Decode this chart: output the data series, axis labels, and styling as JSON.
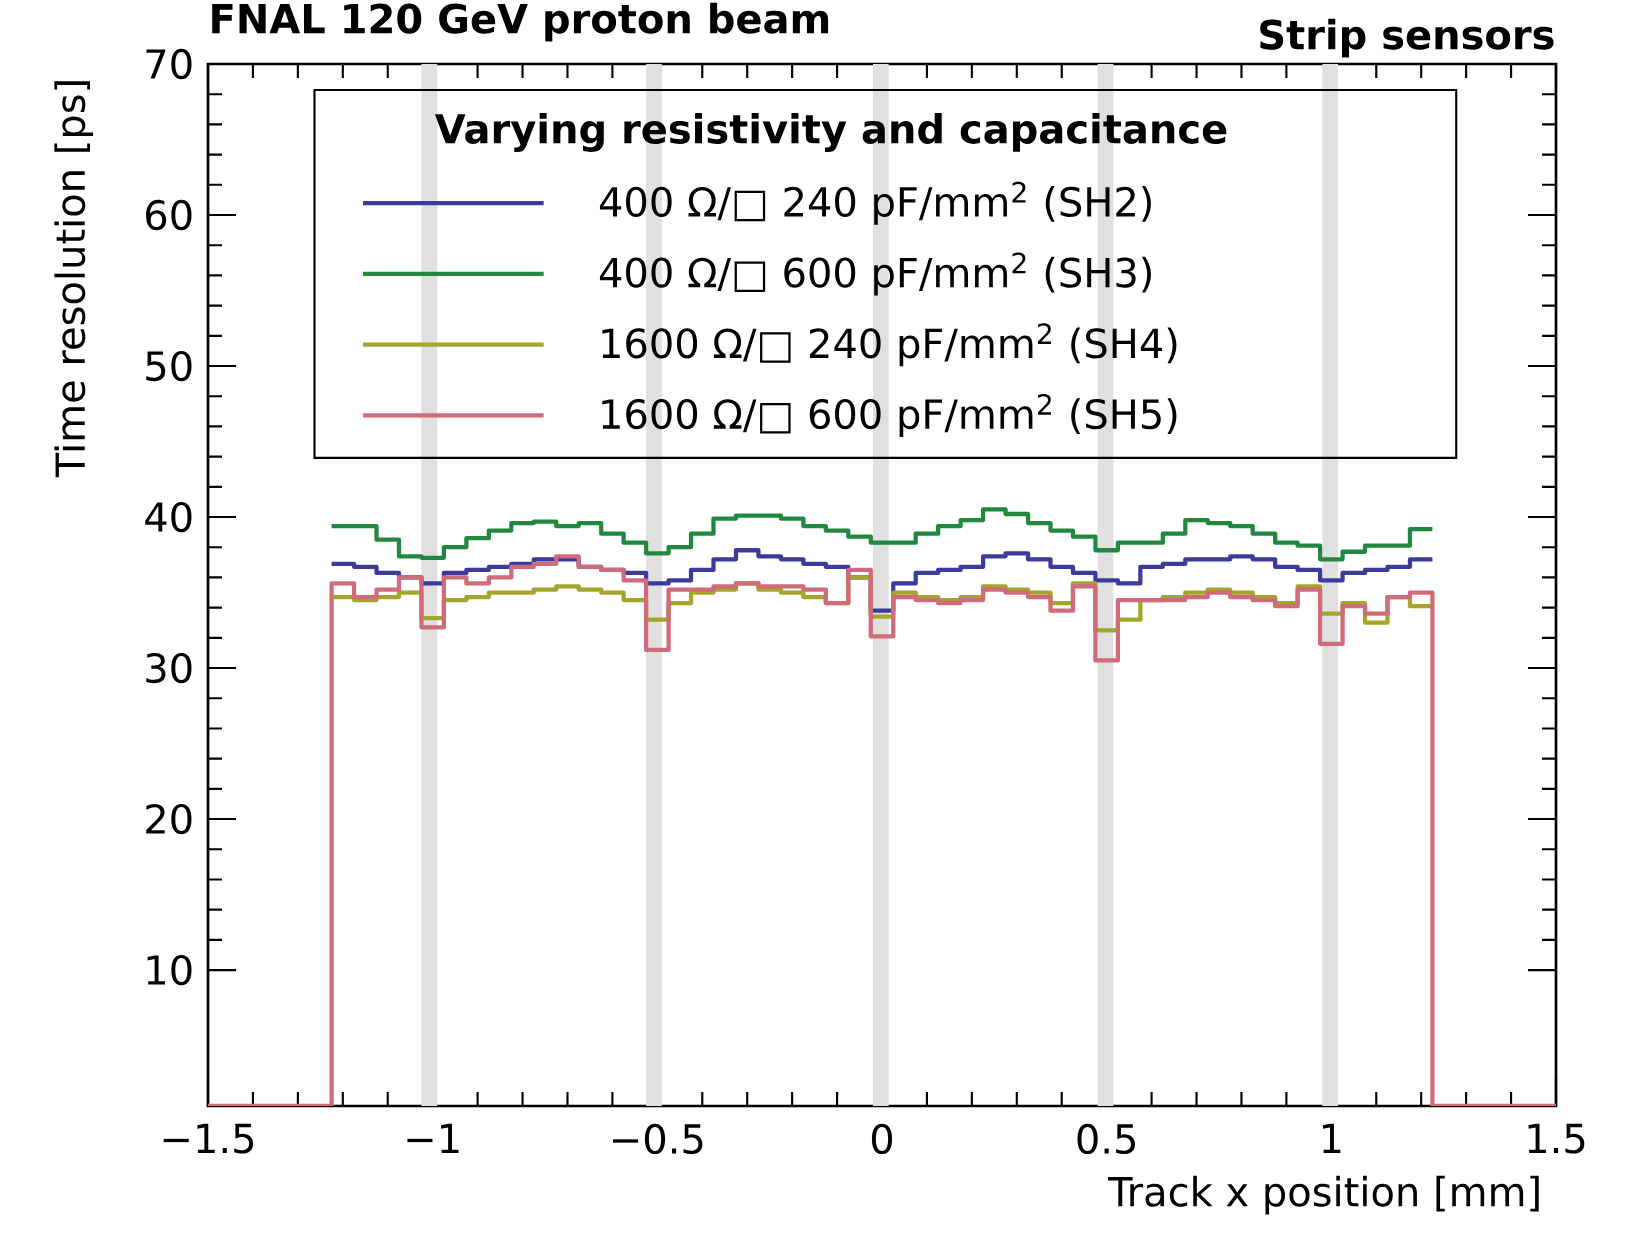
{
  "chart_data": {
    "type": "histogram",
    "title": "FNAL 120 GeV proton beam",
    "subtitle": "Strip sensors",
    "xlabel": "Track x position [mm]",
    "ylabel": "Time resolution [ps]",
    "legend_title": "Varying resistivity and capacitance",
    "legend": "top",
    "xlim": [
      -1.5,
      1.5
    ],
    "ylim": [
      1,
      70
    ],
    "xticks": [
      {
        "value": -1.5,
        "label": "−1.5"
      },
      {
        "value": -1,
        "label": "−1"
      },
      {
        "value": -0.5,
        "label": "−0.5"
      },
      0,
      0.5,
      1,
      1.5
    ],
    "yticks": [
      10,
      20,
      30,
      40,
      50,
      60,
      70
    ],
    "bins": [
      -1.225,
      -1.175,
      -1.125,
      -1.075,
      -1.025,
      -0.975,
      -0.925,
      -0.875,
      -0.825,
      -0.775,
      -0.725,
      -0.675,
      -0.625,
      -0.575,
      -0.525,
      -0.475,
      -0.425,
      -0.375,
      -0.325,
      -0.275,
      -0.225,
      -0.175,
      -0.125,
      -0.075,
      -0.025,
      0.025,
      0.075,
      0.125,
      0.175,
      0.225,
      0.275,
      0.325,
      0.375,
      0.425,
      0.475,
      0.525,
      0.575,
      0.625,
      0.675,
      0.725,
      0.775,
      0.825,
      0.875,
      0.925,
      0.975,
      1.025,
      1.075,
      1.125,
      1.175,
      1.225
    ],
    "bands": [
      {
        "axis": "x",
        "from": -1.025,
        "to": -0.99,
        "color": "#e0e0e0"
      },
      {
        "axis": "x",
        "from": -0.525,
        "to": -0.49,
        "color": "#e0e0e0"
      },
      {
        "axis": "x",
        "from": -0.02,
        "to": 0.015,
        "color": "#e0e0e0"
      },
      {
        "axis": "x",
        "from": 0.48,
        "to": 0.515,
        "color": "#e0e0e0"
      },
      {
        "axis": "x",
        "from": 0.98,
        "to": 1.015,
        "color": "#e0e0e0"
      }
    ],
    "series": [
      {
        "name": "400 Ω/□ 240 pF/mm$^{2}$  (SH2)",
        "color": "#3b3b9c",
        "values": [
          36.9,
          36.7,
          36.3,
          36.0,
          35.6,
          36.3,
          36.5,
          36.7,
          36.9,
          37.2,
          37.2,
          36.7,
          36.5,
          36.3,
          35.6,
          35.8,
          36.5,
          37.2,
          37.8,
          37.4,
          37.2,
          36.9,
          36.7,
          36.0,
          33.8,
          35.6,
          36.3,
          36.5,
          36.7,
          37.4,
          37.6,
          37.2,
          36.7,
          36.3,
          35.8,
          35.6,
          36.7,
          36.9,
          37.2,
          37.2,
          37.4,
          37.2,
          36.7,
          36.5,
          35.8,
          36.3,
          36.5,
          36.7,
          37.2
        ]
      },
      {
        "name": "400 Ω/□ 600 pF/mm$^{2}$  (SH3)",
        "color": "#23883f",
        "values": [
          39.4,
          39.4,
          38.5,
          37.4,
          37.3,
          38.0,
          38.6,
          39.1,
          39.6,
          39.7,
          39.4,
          39.6,
          38.9,
          38.3,
          37.6,
          38.0,
          38.9,
          39.9,
          40.1,
          40.1,
          39.9,
          39.4,
          39.1,
          38.7,
          38.3,
          38.3,
          38.9,
          39.4,
          39.8,
          40.5,
          40.2,
          39.6,
          39.1,
          38.7,
          37.8,
          38.3,
          38.3,
          38.9,
          39.8,
          39.6,
          39.4,
          38.9,
          38.3,
          38.1,
          37.2,
          37.7,
          38.1,
          38.1,
          39.2
        ]
      },
      {
        "name": "1600 Ω/□ 240 pF/mm$^{2}$  (SH4)",
        "color": "#a5a52c",
        "values": [
          34.7,
          34.5,
          34.7,
          35.0,
          33.3,
          34.5,
          34.7,
          35.0,
          35.0,
          35.2,
          35.4,
          35.2,
          35.0,
          34.5,
          33.2,
          34.3,
          35.0,
          35.2,
          35.6,
          35.2,
          35.0,
          34.7,
          34.3,
          36.0,
          33.4,
          35.0,
          34.7,
          34.5,
          34.7,
          35.4,
          35.2,
          35.0,
          34.3,
          35.6,
          32.5,
          33.2,
          34.5,
          34.7,
          35.0,
          35.2,
          35.0,
          34.7,
          34.3,
          35.4,
          33.6,
          34.3,
          33.0,
          34.7,
          34.1
        ]
      },
      {
        "name": "1600 Ω/□ 600 pF/mm$^{2}$  (SH5)",
        "color": "#cf6b7b",
        "bins": [
          -1.5,
          -1.225,
          -1.175,
          -1.125,
          -1.075,
          -1.025,
          -0.975,
          -0.925,
          -0.875,
          -0.825,
          -0.775,
          -0.725,
          -0.675,
          -0.625,
          -0.575,
          -0.525,
          -0.475,
          -0.425,
          -0.375,
          -0.325,
          -0.275,
          -0.225,
          -0.175,
          -0.125,
          -0.075,
          -0.025,
          0.025,
          0.075,
          0.125,
          0.175,
          0.225,
          0.275,
          0.325,
          0.375,
          0.425,
          0.475,
          0.525,
          0.575,
          0.625,
          0.675,
          0.725,
          0.775,
          0.825,
          0.875,
          0.925,
          0.975,
          1.025,
          1.075,
          1.125,
          1.175,
          1.225,
          1.5
        ],
        "values": [
          1,
          35.6,
          34.7,
          35.2,
          36.0,
          32.7,
          36.0,
          35.6,
          36.0,
          36.7,
          36.9,
          37.4,
          36.7,
          36.5,
          35.8,
          31.2,
          35.2,
          35.2,
          35.4,
          35.6,
          35.4,
          35.4,
          35.2,
          34.3,
          36.5,
          32.1,
          34.7,
          34.5,
          34.3,
          34.5,
          35.2,
          35.0,
          34.7,
          33.8,
          35.4,
          30.5,
          34.5,
          34.5,
          34.5,
          34.7,
          35.0,
          34.7,
          34.5,
          34.1,
          35.2,
          31.6,
          34.1,
          33.6,
          34.7,
          35.0,
          1
        ]
      }
    ]
  }
}
